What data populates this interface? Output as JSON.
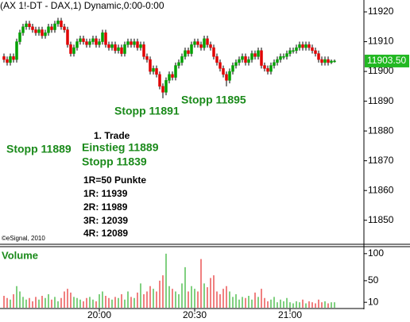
{
  "chart_data": {
    "type": "candlestick",
    "title": "(AX 1!-DT - DAX,1) Dynamic,0:00-0:00",
    "copyright": "©eSignal, 2010",
    "up_color": "#00a000",
    "down_color": "#e00000",
    "categories": [
      null,
      null,
      null,
      null,
      null,
      null,
      null,
      null,
      null,
      null,
      null,
      null,
      null,
      null,
      null,
      null,
      null,
      null,
      null,
      null,
      null,
      null,
      null,
      null,
      null,
      null,
      null,
      null,
      null,
      null,
      "20:00",
      null,
      null,
      null,
      null,
      null,
      null,
      null,
      null,
      null,
      null,
      null,
      null,
      null,
      null,
      null,
      null,
      null,
      null,
      null,
      null,
      null,
      null,
      null,
      null,
      null,
      null,
      null,
      null,
      null,
      "20:30",
      null,
      null,
      null,
      null,
      null,
      null,
      null,
      null,
      null,
      null,
      null,
      null,
      null,
      null,
      null,
      null,
      null,
      null,
      null,
      null,
      null,
      null,
      null,
      null,
      null,
      null,
      null,
      null,
      null,
      "21:00",
      null,
      null,
      null,
      null,
      null,
      null,
      null,
      null,
      null,
      null,
      null,
      null,
      null,
      null
    ],
    "open": [
      11905,
      11904,
      11903,
      11905,
      11904,
      11910,
      11913,
      11915,
      11916,
      11915,
      11914,
      11913,
      11914,
      11912,
      11913,
      11915,
      11914,
      11916,
      11917,
      11915,
      11914,
      11909,
      11906,
      11908,
      11910,
      11911,
      11910,
      11909,
      11910,
      11911,
      11909,
      11910,
      11913,
      11909,
      11908,
      11909,
      11907,
      11908,
      11906,
      11909,
      11910,
      11909,
      11910,
      11908,
      11909,
      11905,
      11904,
      11900,
      11901,
      11899,
      11895,
      11893,
      11897,
      11899,
      11898,
      11902,
      11903,
      11905,
      11907,
      11906,
      11909,
      11910,
      11909,
      11908,
      11911,
      11909,
      11908,
      11905,
      11903,
      11901,
      11899,
      11897,
      11900,
      11902,
      11903,
      11904,
      11905,
      11903,
      11904,
      11906,
      11905,
      11907,
      11902,
      11901,
      11900,
      11902,
      11903,
      11904,
      11905,
      11905,
      11906,
      11907,
      11907,
      11908,
      11909,
      11908,
      11909,
      11908,
      11907,
      11906,
      11904,
      11903,
      11904,
      11903,
      11903.5
    ],
    "high": [
      11906,
      11905,
      11906,
      11906,
      11911,
      11914,
      11916,
      11917,
      11917,
      11916,
      11915,
      11915,
      11915,
      11914,
      11916,
      11916,
      11917,
      11918,
      11918,
      11916,
      11915,
      11910,
      11909,
      11911,
      11912,
      11912,
      11911,
      11911,
      11912,
      11912,
      11911,
      11914,
      11914,
      11910,
      11910,
      11910,
      11909,
      11909,
      11910,
      11911,
      11911,
      11911,
      11911,
      11910,
      11910,
      11906,
      11905,
      11902,
      11902,
      11900,
      11896,
      11898,
      11900,
      11900,
      11903,
      11904,
      11906,
      11908,
      11908,
      11910,
      11911,
      11911,
      11910,
      11912,
      11912,
      11910,
      11909,
      11906,
      11904,
      11902,
      11900,
      11901,
      11903,
      11904,
      11905,
      11906,
      11906,
      11905,
      11907,
      11907,
      11908,
      11908,
      11903,
      11902,
      11903,
      11904,
      11905,
      11906,
      11906,
      11907,
      11908,
      11908,
      11909,
      11910,
      11910,
      11910,
      11910,
      11909,
      11908,
      11907,
      11905,
      11905,
      11905,
      11904,
      11904
    ],
    "low": [
      11903,
      11902,
      11902,
      11903,
      11903,
      11909,
      11912,
      11914,
      11914,
      11913,
      11912,
      11912,
      11911,
      11911,
      11912,
      11913,
      11913,
      11915,
      11914,
      11913,
      11908,
      11905,
      11905,
      11907,
      11909,
      11909,
      11908,
      11908,
      11909,
      11908,
      11908,
      11909,
      11908,
      11907,
      11907,
      11906,
      11906,
      11905,
      11905,
      11908,
      11908,
      11908,
      11907,
      11907,
      11904,
      11903,
      11899,
      11899,
      11898,
      11894,
      11891,
      11892,
      11896,
      11897,
      11897,
      11901,
      11902,
      11904,
      11905,
      11905,
      11908,
      11908,
      11907,
      11907,
      11908,
      11907,
      11904,
      11902,
      11900,
      11898,
      11895,
      11896,
      11899,
      11901,
      11902,
      11903,
      11902,
      11902,
      11903,
      11904,
      11904,
      11901,
      11900,
      11899,
      11899,
      11901,
      11902,
      11903,
      11904,
      11904,
      11905,
      11906,
      11906,
      11907,
      11907,
      11907,
      11907,
      11906,
      11905,
      11903,
      11902,
      11902,
      11902,
      11902.5,
      11903
    ],
    "close": [
      11904,
      11903,
      11905,
      11904,
      11910,
      11913,
      11915,
      11916,
      11915,
      11914,
      11913,
      11914,
      11912,
      11913,
      11915,
      11914,
      11916,
      11917,
      11915,
      11914,
      11909,
      11906,
      11908,
      11910,
      11911,
      11910,
      11909,
      11910,
      11911,
      11909,
      11910,
      11913,
      11909,
      11908,
      11909,
      11907,
      11908,
      11906,
      11909,
      11910,
      11909,
      11910,
      11908,
      11909,
      11905,
      11904,
      11900,
      11901,
      11899,
      11895,
      11893,
      11897,
      11899,
      11898,
      11902,
      11903,
      11905,
      11907,
      11906,
      11909,
      11910,
      11909,
      11908,
      11911,
      11909,
      11908,
      11905,
      11903,
      11901,
      11899,
      11897,
      11900,
      11902,
      11903,
      11904,
      11905,
      11903,
      11904,
      11906,
      11905,
      11907,
      11902,
      11901,
      11900,
      11902,
      11903,
      11904,
      11905,
      11905,
      11906,
      11907,
      11907,
      11908,
      11909,
      11908,
      11909,
      11908,
      11907,
      11906,
      11904,
      11903,
      11904,
      11903,
      11903.5,
      11903.5
    ],
    "ylim": [
      11843,
      11924
    ],
    "yticks": [
      11850,
      11860,
      11870,
      11880,
      11890,
      11900,
      11910,
      11920
    ],
    "last_price": {
      "value": 11903.5,
      "label": "11903.50"
    },
    "annotations": [
      {
        "text": "Stopp 11889",
        "color": "#1a8a1a"
      },
      {
        "text": "1. Trade",
        "color": "#000000"
      },
      {
        "text": "Einstieg 11889",
        "color": "#1a8a1a"
      },
      {
        "text": "Stopp 11839",
        "color": "#1a8a1a"
      },
      {
        "text": "1R=50 Punkte",
        "color": "#000000"
      },
      {
        "text": "1R: 11939",
        "color": "#000000"
      },
      {
        "text": "2R: 11989",
        "color": "#000000"
      },
      {
        "text": "3R: 12039",
        "color": "#000000"
      },
      {
        "text": "4R: 12089",
        "color": "#000000"
      },
      {
        "text": "Stopp 11891",
        "color": "#1a8a1a"
      },
      {
        "text": "Stopp 11895",
        "color": "#1a8a1a"
      }
    ],
    "volume": {
      "name": "Volume",
      "values": [
        22,
        18,
        15,
        25,
        40,
        30,
        20,
        15,
        18,
        12,
        20,
        15,
        22,
        18,
        25,
        15,
        20,
        12,
        18,
        30,
        35,
        28,
        20,
        18,
        15,
        12,
        18,
        20,
        15,
        12,
        25,
        30,
        22,
        18,
        15,
        20,
        18,
        25,
        15,
        30,
        20,
        18,
        28,
        45,
        25,
        30,
        40,
        35,
        30,
        50,
        60,
        100,
        40,
        35,
        30,
        25,
        45,
        75,
        30,
        40,
        35,
        30,
        90,
        45,
        38,
        55,
        60,
        30,
        25,
        35,
        40,
        30,
        20,
        25,
        15,
        20,
        18,
        22,
        15,
        28,
        20,
        35,
        18,
        12,
        15,
        20,
        10,
        15,
        12,
        18,
        10,
        8,
        12,
        10,
        15,
        8,
        12,
        10,
        8,
        15,
        10,
        12,
        8,
        10,
        10
      ],
      "ylim": [
        0,
        110
      ],
      "yticks": [
        10,
        50,
        100
      ]
    }
  }
}
